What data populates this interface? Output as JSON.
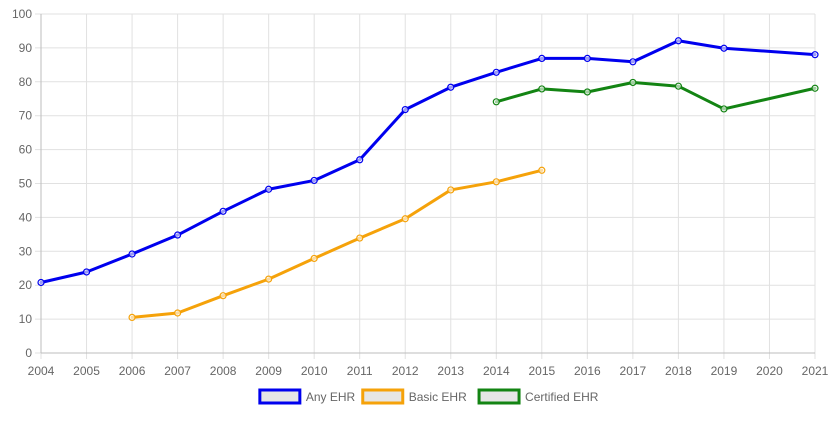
{
  "chart_data": {
    "type": "line",
    "x": [
      "2004",
      "2005",
      "2006",
      "2007",
      "2008",
      "2009",
      "2010",
      "2011",
      "2012",
      "2013",
      "2014",
      "2015",
      "2016",
      "2017",
      "2018",
      "2019",
      "2020",
      "2021"
    ],
    "series": [
      {
        "name": "Any EHR",
        "color": "#0000ee",
        "values": [
          20.8,
          23.9,
          29.2,
          34.8,
          41.8,
          48.3,
          50.9,
          57.0,
          71.8,
          78.4,
          82.8,
          86.9,
          86.9,
          85.9,
          92.1,
          89.9,
          null,
          88.0
        ]
      },
      {
        "name": "Basic EHR",
        "color": "#f5a20a",
        "values": [
          null,
          null,
          10.5,
          11.8,
          16.9,
          21.8,
          27.9,
          33.9,
          39.6,
          48.1,
          50.5,
          53.9,
          null,
          null,
          null,
          null,
          null,
          null
        ]
      },
      {
        "name": "Certified EHR",
        "color": "#138413",
        "values": [
          null,
          null,
          null,
          null,
          null,
          null,
          null,
          null,
          null,
          null,
          74.1,
          77.9,
          77.0,
          79.8,
          78.7,
          72.0,
          null,
          78.1
        ]
      }
    ],
    "title": "",
    "xlabel": "",
    "ylabel": "",
    "ylim": [
      0,
      100
    ],
    "yticks": [
      "0",
      "10",
      "20",
      "30",
      "40",
      "50",
      "60",
      "70",
      "80",
      "90",
      "100"
    ],
    "grid": true,
    "legend": "bottom-center"
  }
}
